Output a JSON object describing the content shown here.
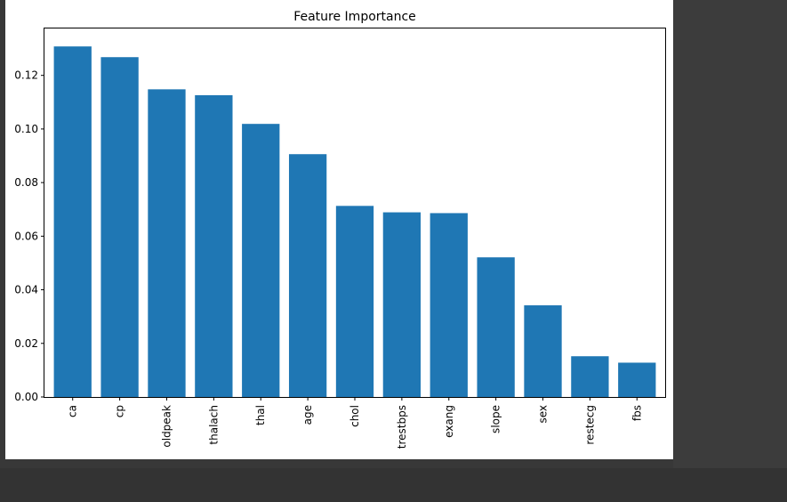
{
  "colors": {
    "bar": "#1f77b4",
    "background": "#383838",
    "figure": "#ffffff",
    "axis": "#000000"
  },
  "chart_data": {
    "type": "bar",
    "title": "Feature Importance",
    "xlabel": "",
    "ylabel": "",
    "categories": [
      "ca",
      "cp",
      "oldpeak",
      "thalach",
      "thal",
      "age",
      "chol",
      "trestbps",
      "exang",
      "slope",
      "sex",
      "restecg",
      "fbs"
    ],
    "values": [
      0.1308,
      0.1268,
      0.1148,
      0.1126,
      0.1019,
      0.0906,
      0.0713,
      0.0689,
      0.0686,
      0.0521,
      0.0342,
      0.0152,
      0.0128
    ],
    "ylim": [
      0,
      0.1375
    ],
    "yticks": [
      0.0,
      0.02,
      0.04,
      0.06,
      0.08,
      0.1,
      0.12
    ],
    "ytick_labels": [
      "0.00",
      "0.02",
      "0.04",
      "0.06",
      "0.08",
      "0.10",
      "0.12"
    ],
    "grid": false,
    "legend": "none"
  }
}
